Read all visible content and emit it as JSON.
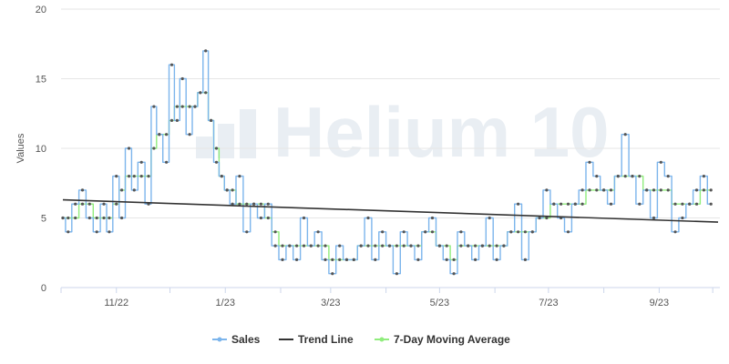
{
  "chart_data": {
    "type": "line",
    "ylabel": "Values",
    "ylim": [
      0,
      20
    ],
    "yticks": [
      0,
      5,
      10,
      15,
      20
    ],
    "xlim": [
      "2022-10-01",
      "2023-10-05"
    ],
    "xtick_labels": [
      "11/22",
      "1/23",
      "3/23",
      "5/23",
      "7/23",
      "9/23"
    ],
    "grid": true,
    "legend_position": "bottom-center",
    "watermark": "Helium 10",
    "series": [
      {
        "name": "Sales",
        "color": "#7cb5ec",
        "x": [
          "2022-10-02",
          "2022-10-05",
          "2022-10-09",
          "2022-10-13",
          "2022-10-17",
          "2022-10-21",
          "2022-10-25",
          "2022-10-28",
          "2022-11-01",
          "2022-11-04",
          "2022-11-08",
          "2022-11-11",
          "2022-11-15",
          "2022-11-19",
          "2022-11-22",
          "2022-11-25",
          "2022-11-29",
          "2022-12-02",
          "2022-12-05",
          "2022-12-08",
          "2022-12-12",
          "2022-12-15",
          "2022-12-18",
          "2022-12-21",
          "2022-12-24",
          "2022-12-27",
          "2022-12-30",
          "2023-01-02",
          "2023-01-05",
          "2023-01-09",
          "2023-01-13",
          "2023-01-17",
          "2023-01-21",
          "2023-01-25",
          "2023-01-29",
          "2023-02-02",
          "2023-02-06",
          "2023-02-10",
          "2023-02-14",
          "2023-02-18",
          "2023-02-22",
          "2023-02-26",
          "2023-03-02",
          "2023-03-06",
          "2023-03-10",
          "2023-03-14",
          "2023-03-18",
          "2023-03-22",
          "2023-03-26",
          "2023-03-30",
          "2023-04-03",
          "2023-04-07",
          "2023-04-11",
          "2023-04-15",
          "2023-04-19",
          "2023-04-23",
          "2023-04-27",
          "2023-05-01",
          "2023-05-05",
          "2023-05-09",
          "2023-05-13",
          "2023-05-17",
          "2023-05-21",
          "2023-05-25",
          "2023-05-29",
          "2023-06-02",
          "2023-06-06",
          "2023-06-10",
          "2023-06-14",
          "2023-06-18",
          "2023-06-22",
          "2023-06-26",
          "2023-06-30",
          "2023-07-04",
          "2023-07-08",
          "2023-07-12",
          "2023-07-16",
          "2023-07-20",
          "2023-07-24",
          "2023-07-28",
          "2023-08-01",
          "2023-08-05",
          "2023-08-09",
          "2023-08-13",
          "2023-08-17",
          "2023-08-21",
          "2023-08-25",
          "2023-08-29",
          "2023-09-02",
          "2023-09-06",
          "2023-09-10",
          "2023-09-14",
          "2023-09-18",
          "2023-09-22",
          "2023-09-26",
          "2023-09-30"
        ],
        "values": [
          5,
          4,
          6,
          7,
          5,
          4,
          6,
          4,
          8,
          5,
          10,
          7,
          9,
          6,
          13,
          11,
          9,
          16,
          12,
          15,
          11,
          13,
          14,
          17,
          12,
          9,
          8,
          7,
          6,
          8,
          4,
          6,
          5,
          6,
          3,
          2,
          3,
          2,
          5,
          3,
          4,
          2,
          1,
          3,
          2,
          2,
          3,
          5,
          2,
          4,
          3,
          1,
          4,
          3,
          2,
          4,
          5,
          3,
          2,
          1,
          4,
          3,
          2,
          3,
          5,
          2,
          3,
          4,
          6,
          2,
          4,
          5,
          7,
          6,
          5,
          4,
          6,
          7,
          9,
          8,
          7,
          6,
          8,
          11,
          8,
          6,
          7,
          5,
          9,
          8,
          4,
          5,
          6,
          7,
          8,
          6
        ]
      },
      {
        "name": "Trend Line",
        "color": "#333333",
        "x": [
          "2022-10-02",
          "2023-10-04"
        ],
        "values": [
          6.3,
          4.7
        ]
      },
      {
        "name": "7-Day Moving Average",
        "color": "#90ed7d",
        "x": [
          "2022-10-02",
          "2022-10-05",
          "2022-10-09",
          "2022-10-13",
          "2022-10-17",
          "2022-10-21",
          "2022-10-25",
          "2022-10-28",
          "2022-11-01",
          "2022-11-04",
          "2022-11-08",
          "2022-11-11",
          "2022-11-15",
          "2022-11-19",
          "2022-11-22",
          "2022-11-25",
          "2022-11-29",
          "2022-12-02",
          "2022-12-05",
          "2022-12-08",
          "2022-12-12",
          "2022-12-15",
          "2022-12-18",
          "2022-12-21",
          "2022-12-24",
          "2022-12-27",
          "2022-12-30",
          "2023-01-02",
          "2023-01-05",
          "2023-01-09",
          "2023-01-13",
          "2023-01-17",
          "2023-01-21",
          "2023-01-25",
          "2023-01-29",
          "2023-02-02",
          "2023-02-06",
          "2023-02-10",
          "2023-02-14",
          "2023-02-18",
          "2023-02-22",
          "2023-02-26",
          "2023-03-02",
          "2023-03-06",
          "2023-03-10",
          "2023-03-14",
          "2023-03-18",
          "2023-03-22",
          "2023-03-26",
          "2023-03-30",
          "2023-04-03",
          "2023-04-07",
          "2023-04-11",
          "2023-04-15",
          "2023-04-19",
          "2023-04-23",
          "2023-04-27",
          "2023-05-01",
          "2023-05-05",
          "2023-05-09",
          "2023-05-13",
          "2023-05-17",
          "2023-05-21",
          "2023-05-25",
          "2023-05-29",
          "2023-06-02",
          "2023-06-06",
          "2023-06-10",
          "2023-06-14",
          "2023-06-18",
          "2023-06-22",
          "2023-06-26",
          "2023-06-30",
          "2023-07-04",
          "2023-07-08",
          "2023-07-12",
          "2023-07-16",
          "2023-07-20",
          "2023-07-24",
          "2023-07-28",
          "2023-08-01",
          "2023-08-05",
          "2023-08-09",
          "2023-08-13",
          "2023-08-17",
          "2023-08-21",
          "2023-08-25",
          "2023-08-29",
          "2023-09-02",
          "2023-09-06",
          "2023-09-10",
          "2023-09-14",
          "2023-09-18",
          "2023-09-22",
          "2023-09-26",
          "2023-09-30"
        ],
        "values": [
          5,
          5,
          5,
          6,
          6,
          5,
          5,
          5,
          6,
          7,
          8,
          8,
          8,
          8,
          10,
          11,
          11,
          12,
          13,
          13,
          13,
          13,
          14,
          14,
          12,
          10,
          8,
          7,
          7,
          6,
          6,
          6,
          6,
          5,
          4,
          3,
          3,
          3,
          3,
          3,
          3,
          3,
          2,
          2,
          2,
          2,
          3,
          3,
          3,
          3,
          3,
          3,
          3,
          3,
          3,
          4,
          4,
          3,
          3,
          2,
          3,
          3,
          3,
          3,
          3,
          3,
          3,
          4,
          4,
          4,
          4,
          5,
          5,
          6,
          6,
          6,
          6,
          6,
          7,
          7,
          7,
          7,
          8,
          8,
          8,
          8,
          7,
          7,
          7,
          7,
          6,
          6,
          6,
          6,
          7,
          7
        ]
      }
    ]
  }
}
